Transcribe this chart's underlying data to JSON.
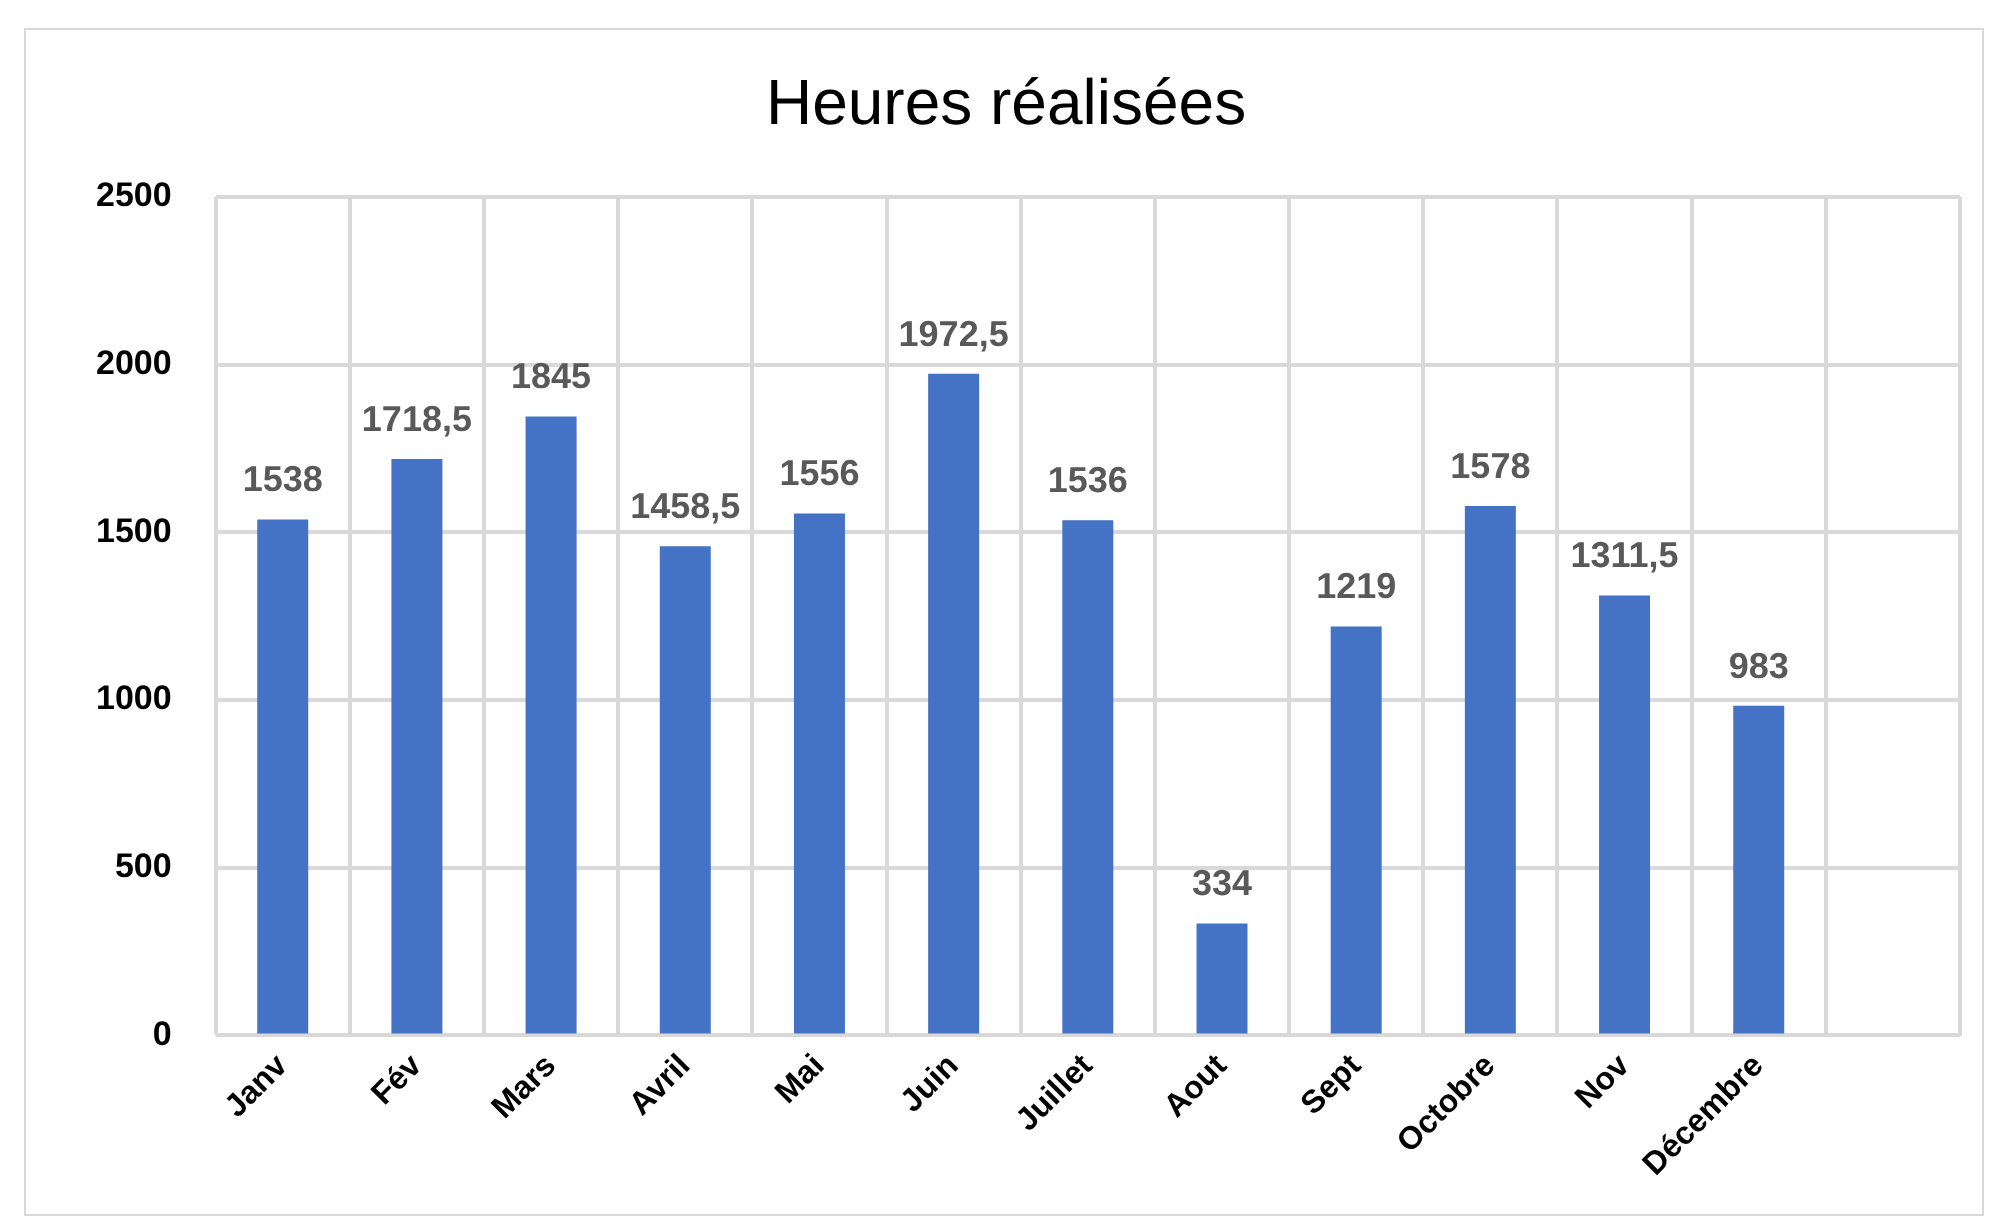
{
  "chart_data": {
    "type": "bar",
    "title": "Heures réalisées",
    "categories": [
      "Janv",
      "Fév",
      "Mars",
      "Avril",
      "Mai",
      "Juin",
      "Juillet",
      "Aout",
      "Sept",
      "Octobre",
      "Nov",
      "Décembre",
      null
    ],
    "values": [
      1538,
      1718.5,
      1845,
      1458.5,
      1556,
      1972.5,
      1536,
      334,
      1219,
      1578,
      1311.5,
      983,
      null
    ],
    "value_labels": [
      "1538",
      "1718,5",
      "1845",
      "1458,5",
      "1556",
      "1972,5",
      "1536",
      "334",
      "1219",
      "1578",
      "1311,5",
      "983",
      null
    ],
    "color": "#4472c4",
    "ylim": [
      0,
      2500
    ],
    "yticks": [
      0,
      500,
      1000,
      1500,
      2000,
      2500
    ],
    "grid": true
  }
}
